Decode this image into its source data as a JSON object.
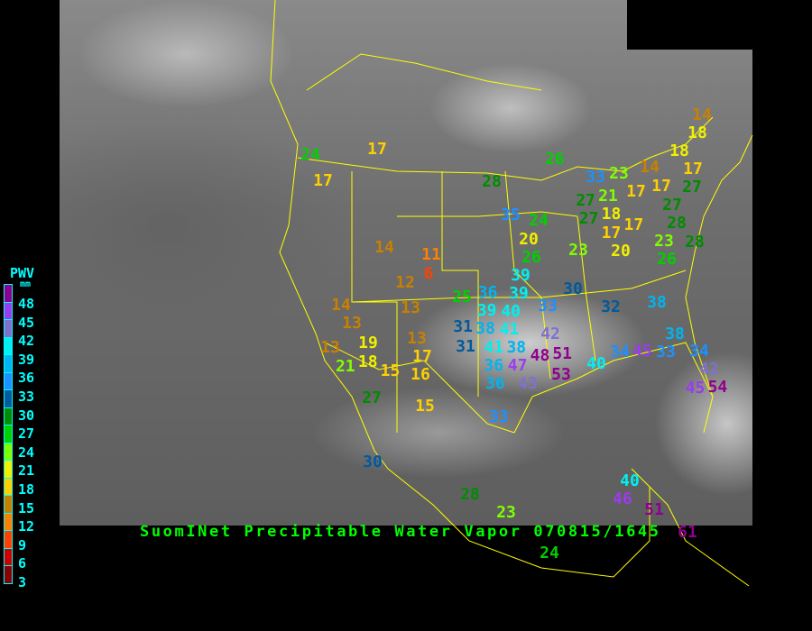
{
  "title": "SuomINet Precipitable Water Vapor 070815/1645",
  "legend": {
    "title": "PWV",
    "unit": "mm",
    "labels": [
      "48",
      "45",
      "42",
      "39",
      "36",
      "33",
      "30",
      "27",
      "24",
      "21",
      "18",
      "15",
      "12",
      "9",
      "6",
      "3"
    ],
    "colors": [
      "#900090",
      "#9a3cf0",
      "#8070d0",
      "#00f0f0",
      "#00b4f0",
      "#1e90ff",
      "#005a9c",
      "#008c00",
      "#00d000",
      "#80ff00",
      "#f0f000",
      "#ffd000",
      "#c88000",
      "#ff8000",
      "#ff4000",
      "#d00000",
      "#8b0000"
    ]
  },
  "stations": [
    "24",
    "17",
    "17",
    "28",
    "26",
    "23",
    "14",
    "17",
    "17",
    "14",
    "18",
    "18",
    "17",
    "27",
    "33",
    "27",
    "21",
    "18",
    "27",
    "17",
    "20",
    "17",
    "27",
    "28",
    "23",
    "26",
    "28",
    "35",
    "20",
    "24",
    "23",
    "26",
    "14",
    "11",
    "6",
    "12",
    "25",
    "30",
    "39",
    "39",
    "36",
    "40",
    "33",
    "32",
    "38",
    "14",
    "13",
    "13",
    "39",
    "41",
    "31",
    "38",
    "41",
    "31",
    "42",
    "13",
    "19",
    "13",
    "38",
    "48",
    "51",
    "21",
    "18",
    "15",
    "17",
    "16",
    "36",
    "36",
    "47",
    "43",
    "53",
    "40",
    "34",
    "45",
    "33",
    "38",
    "34",
    "42",
    "45",
    "54",
    "27",
    "15",
    "33",
    "30",
    "28",
    "40",
    "46",
    "51",
    "23",
    "61",
    "24"
  ],
  "colors": {
    "map_borders": "#ffff00",
    "title": "#00ff00",
    "legend_text": "#00ffff"
  }
}
